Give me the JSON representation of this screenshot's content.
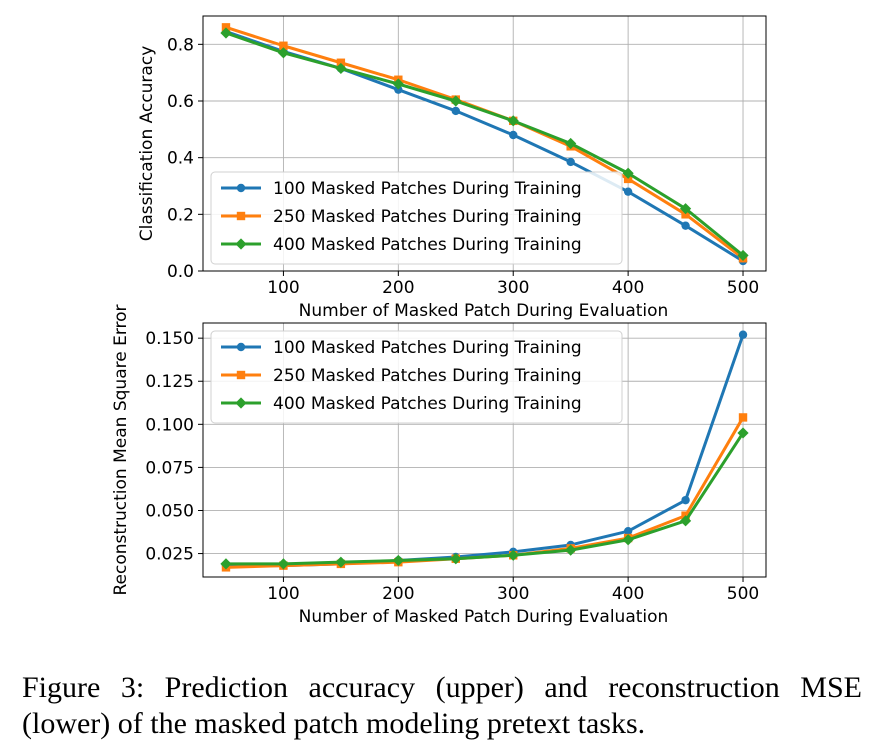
{
  "chart_data": [
    {
      "type": "line",
      "title": "",
      "xlabel": "Number of Masked Patch During Evaluation",
      "ylabel": "Classification Accuracy",
      "x": [
        50,
        100,
        150,
        200,
        250,
        300,
        350,
        400,
        450,
        500
      ],
      "xlim": [
        30,
        520
      ],
      "ylim": [
        0.0,
        0.9
      ],
      "xticks": [
        100,
        200,
        300,
        400,
        500
      ],
      "yticks": [
        0.0,
        0.2,
        0.4,
        0.6,
        0.8
      ],
      "ytick_labels": [
        "0.0",
        "0.2",
        "0.4",
        "0.6",
        "0.8"
      ],
      "grid": true,
      "legend_position": "lower-left",
      "series": [
        {
          "name": "100 Masked Patches During Training",
          "color": "#1f77b4",
          "marker": "circle",
          "values": [
            0.845,
            0.775,
            0.715,
            0.64,
            0.565,
            0.48,
            0.385,
            0.28,
            0.16,
            0.035
          ]
        },
        {
          "name": "250 Masked Patches During Training",
          "color": "#ff7f0e",
          "marker": "square",
          "values": [
            0.86,
            0.795,
            0.735,
            0.675,
            0.605,
            0.53,
            0.44,
            0.325,
            0.2,
            0.045
          ]
        },
        {
          "name": "400 Masked Patches During Training",
          "color": "#2ca02c",
          "marker": "diamond",
          "values": [
            0.84,
            0.77,
            0.715,
            0.66,
            0.6,
            0.53,
            0.45,
            0.345,
            0.22,
            0.055
          ]
        }
      ]
    },
    {
      "type": "line",
      "title": "",
      "xlabel": "Number of Masked Patch During Evaluation",
      "ylabel": "Reconstruction Mean Square Error",
      "x": [
        50,
        100,
        150,
        200,
        250,
        300,
        350,
        400,
        450,
        500
      ],
      "xlim": [
        30,
        520
      ],
      "ylim": [
        0.0114,
        0.1588
      ],
      "xticks": [
        100,
        200,
        300,
        400,
        500
      ],
      "yticks": [
        0.025,
        0.05,
        0.075,
        0.1,
        0.125,
        0.15
      ],
      "ytick_labels": [
        "0.025",
        "0.050",
        "0.075",
        "0.100",
        "0.125",
        "0.150"
      ],
      "grid": true,
      "legend_position": "top-left",
      "series": [
        {
          "name": "100 Masked Patches During Training",
          "color": "#1f77b4",
          "marker": "circle",
          "values": [
            0.018,
            0.018,
            0.019,
            0.021,
            0.023,
            0.026,
            0.03,
            0.038,
            0.056,
            0.152
          ]
        },
        {
          "name": "250 Masked Patches During Training",
          "color": "#ff7f0e",
          "marker": "square",
          "values": [
            0.017,
            0.018,
            0.019,
            0.02,
            0.022,
            0.024,
            0.028,
            0.034,
            0.047,
            0.104
          ]
        },
        {
          "name": "400 Masked Patches During Training",
          "color": "#2ca02c",
          "marker": "diamond",
          "values": [
            0.019,
            0.019,
            0.02,
            0.021,
            0.022,
            0.024,
            0.027,
            0.033,
            0.044,
            0.095
          ]
        }
      ]
    }
  ],
  "caption": "Figure 3: Prediction accuracy (upper) and reconstruction MSE (lower) of the masked patch modeling pretext tasks."
}
